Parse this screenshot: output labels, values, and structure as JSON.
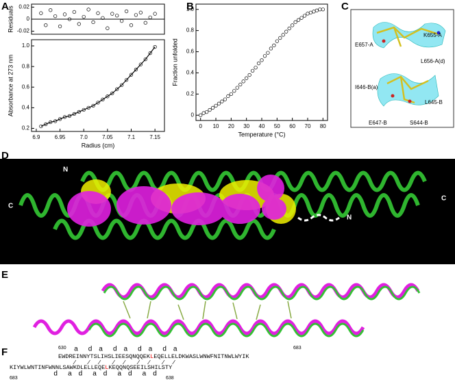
{
  "panels": [
    "A",
    "B",
    "C",
    "D",
    "E",
    "F"
  ],
  "chart_data": [
    {
      "type": "scatter",
      "ylabel": "Residuals",
      "x": [
        6.91,
        6.92,
        6.93,
        6.94,
        6.95,
        6.96,
        6.97,
        6.98,
        6.99,
        7.0,
        7.01,
        7.02,
        7.03,
        7.04,
        7.05,
        7.06,
        7.07,
        7.08,
        7.09,
        7.1,
        7.11,
        7.12,
        7.13,
        7.14,
        7.15
      ],
      "values": [
        0.01,
        -0.01,
        0.015,
        0.005,
        -0.012,
        0.008,
        0.0,
        0.012,
        -0.008,
        0.004,
        0.016,
        -0.005,
        0.01,
        0.002,
        -0.015,
        0.009,
        0.006,
        -0.003,
        0.013,
        -0.01,
        0.007,
        0.011,
        -0.006,
        0.003,
        0.009
      ],
      "xlim": [
        6.89,
        7.17
      ],
      "ylim": [
        -0.025,
        0.025
      ],
      "yticks": [
        0.02,
        0,
        -0.02
      ],
      "zero_line": true
    },
    {
      "type": "scatter",
      "ylabel": "Absorbance at 273 nm",
      "xlabel": "Radius (cm)",
      "x": [
        6.91,
        6.92,
        6.93,
        6.94,
        6.95,
        6.96,
        6.97,
        6.98,
        6.99,
        7.0,
        7.01,
        7.02,
        7.03,
        7.04,
        7.05,
        7.06,
        7.07,
        7.08,
        7.09,
        7.1,
        7.11,
        7.12,
        7.13,
        7.14,
        7.15
      ],
      "values": [
        0.22,
        0.24,
        0.26,
        0.27,
        0.29,
        0.31,
        0.32,
        0.34,
        0.36,
        0.38,
        0.4,
        0.42,
        0.45,
        0.48,
        0.51,
        0.54,
        0.58,
        0.62,
        0.67,
        0.72,
        0.77,
        0.82,
        0.87,
        0.93,
        0.99
      ],
      "xlim": [
        6.89,
        7.17
      ],
      "ylim": [
        0.17,
        1.06
      ],
      "xticks": [
        6.9,
        6.95,
        {
          "value": 7,
          "label": "7.0"
        },
        7.05,
        7.1,
        7.15
      ],
      "yticks": [
        0.2,
        0.4,
        0.6,
        0.8,
        {
          "value": 1,
          "label": "1.0"
        }
      ],
      "fit_line": true
    },
    {
      "type": "scatter",
      "ylabel": "Fraction unfolded",
      "xlabel": "Temperature (°C)",
      "x": [
        0,
        2,
        4,
        6,
        8,
        10,
        12,
        14,
        16,
        18,
        20,
        22,
        24,
        26,
        28,
        30,
        32,
        34,
        36,
        38,
        40,
        42,
        44,
        46,
        48,
        50,
        52,
        54,
        56,
        58,
        60,
        62,
        64,
        66,
        68,
        70,
        72,
        74,
        76,
        78,
        80
      ],
      "values": [
        0.0,
        0.02,
        0.03,
        0.05,
        0.07,
        0.09,
        0.11,
        0.13,
        0.15,
        0.18,
        0.2,
        0.23,
        0.26,
        0.29,
        0.32,
        0.35,
        0.38,
        0.42,
        0.45,
        0.49,
        0.52,
        0.56,
        0.59,
        0.63,
        0.66,
        0.7,
        0.73,
        0.76,
        0.79,
        0.82,
        0.85,
        0.88,
        0.9,
        0.92,
        0.94,
        0.96,
        0.97,
        0.98,
        0.99,
        1.0,
        1.0
      ],
      "xlim": [
        -3,
        83
      ],
      "ylim": [
        -0.05,
        1.05
      ],
      "xticks": [
        0,
        10,
        20,
        30,
        40,
        50,
        60,
        70,
        80
      ],
      "yticks": [
        0,
        0.2,
        0.4,
        0.6,
        0.8,
        {
          "value": 1,
          "label": "1.0"
        }
      ]
    }
  ],
  "structure_c_labels": [
    "E657-A",
    "K655-A",
    "L656-A(d)",
    "I646-B(a)",
    "L645-B",
    "E647-B",
    "S644-B"
  ],
  "structure_d_labels": [
    "N",
    "C",
    "C",
    "N"
  ],
  "sequence": {
    "top_start": "630",
    "top_end": "683",
    "top_heptad": [
      "a",
      "d",
      "a",
      "d",
      "a",
      "d",
      "a",
      "d",
      "a"
    ],
    "top": [
      "EWDREINNYTSLIHSLIEESQNQQEK",
      "L",
      "EQELLELDKWASLWNWFNITNWLWYIK"
    ],
    "bottom": [
      "KIYWLWNTINFWNNLSAWKDLELLEQE",
      "L",
      "KEQQNQSEEILSHILSTY"
    ],
    "bottom_heptad": [
      "d",
      "a",
      "d",
      "a",
      "d",
      "a",
      "d",
      "a",
      "d"
    ],
    "bottom_start": "683",
    "bottom_end": "638"
  }
}
